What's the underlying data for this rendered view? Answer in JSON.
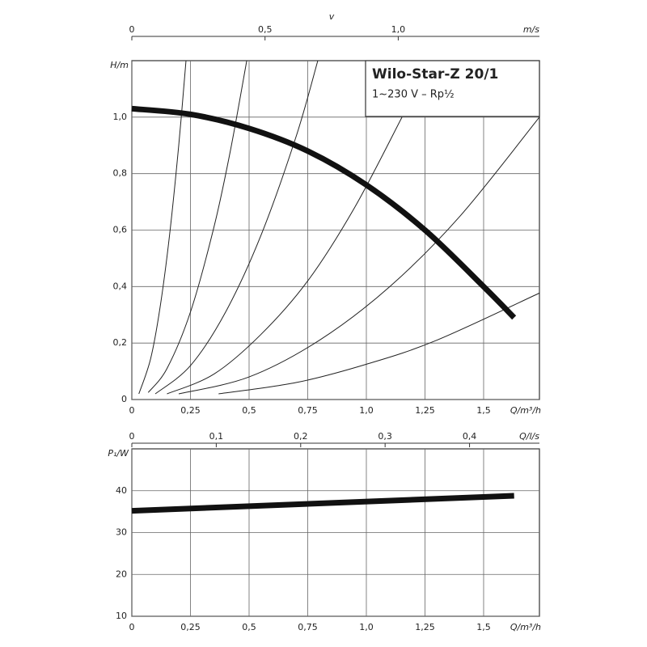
{
  "chart_data": [
    {
      "type": "line",
      "title": "Wilo-Star-Z 20/1",
      "subtitle": "1~230 V – Rp½",
      "xlabel": "Q/m³/h",
      "ylabel": "H/m",
      "xlim": [
        0,
        1.738
      ],
      "ylim": [
        0,
        1.2
      ],
      "xticks": [
        0,
        {
          "value": 0.25,
          "label": "0,25"
        },
        {
          "value": 0.5,
          "label": "0,5"
        },
        {
          "value": 0.75,
          "label": "0,75"
        },
        {
          "value": 1,
          "label": "1,0"
        },
        {
          "value": 1.25,
          "label": "1,25"
        },
        {
          "value": 1.5,
          "label": "1,5"
        }
      ],
      "yticks": [
        0,
        {
          "value": 0.2,
          "label": "0,2"
        },
        {
          "value": 0.4,
          "label": "0,4"
        },
        {
          "value": 0.6,
          "label": "0,6"
        },
        {
          "value": 0.8,
          "label": "0,8"
        },
        {
          "value": 1,
          "label": "1,0"
        }
      ],
      "grid": true,
      "v_axis": {
        "label": "v",
        "unit": "m/s",
        "lim": [
          0,
          1.53
        ],
        "ticks": [
          0,
          {
            "value": 0.5,
            "label": "0,5"
          },
          {
            "value": 1,
            "label": "1,0"
          }
        ]
      },
      "q_ls_axis": {
        "label": "Q/l/s",
        "lim": [
          0,
          0.4828
        ],
        "ticks": [
          0,
          {
            "value": 0.1,
            "label": "0,1"
          },
          {
            "value": 0.2,
            "label": "0,2"
          },
          {
            "value": 0.3,
            "label": "0,3"
          },
          {
            "value": 0.4,
            "label": "0,4"
          }
        ]
      },
      "series": [
        {
          "color": "#111111",
          "width": 7,
          "x": [
            0,
            0.25,
            0.5,
            0.75,
            1.0,
            1.25,
            1.5,
            1.63
          ],
          "values": [
            1.03,
            1.01,
            0.96,
            0.88,
            0.76,
            0.6,
            0.4,
            0.29
          ]
        },
        {
          "color": "#222222",
          "width": 1,
          "x": [
            0.03,
            0.08,
            0.12,
            0.16,
            0.2,
            0.231
          ],
          "values": [
            0.02,
            0.144,
            0.324,
            0.576,
            0.9,
            1.2
          ]
        },
        {
          "color": "#222222",
          "width": 1,
          "x": [
            0.07,
            0.15,
            0.25,
            0.35,
            0.42,
            0.49
          ],
          "values": [
            0.025,
            0.11,
            0.31,
            0.61,
            0.88,
            1.2
          ]
        },
        {
          "color": "#222222",
          "width": 1,
          "x": [
            0.1,
            0.25,
            0.4,
            0.55,
            0.7,
            0.793
          ],
          "values": [
            0.02,
            0.12,
            0.31,
            0.58,
            0.93,
            1.2
          ]
        },
        {
          "color": "#222222",
          "width": 1,
          "x": [
            0.15,
            0.35,
            0.55,
            0.75,
            0.95,
            1.152
          ],
          "values": [
            0.02,
            0.09,
            0.23,
            0.42,
            0.68,
            1.0
          ]
        },
        {
          "color": "#222222",
          "width": 1,
          "x": [
            0.2,
            0.5,
            0.8,
            1.1,
            1.4,
            1.738
          ],
          "values": [
            0.02,
            0.08,
            0.21,
            0.4,
            0.65,
            1.0
          ]
        },
        {
          "color": "#222222",
          "width": 1,
          "x": [
            0.37,
            0.7,
            1.0,
            1.3,
            1.738
          ],
          "values": [
            0.02,
            0.06,
            0.125,
            0.21,
            0.377
          ]
        }
      ]
    },
    {
      "type": "line",
      "xlabel": "Q/m³/h",
      "ylabel": "P₁/W",
      "xlim": [
        0,
        1.738
      ],
      "ylim": [
        10,
        50
      ],
      "xticks": [
        0,
        {
          "value": 0.25,
          "label": "0,25"
        },
        {
          "value": 0.5,
          "label": "0,5"
        },
        {
          "value": 0.75,
          "label": "0,75"
        },
        {
          "value": 1,
          "label": "1,0"
        },
        {
          "value": 1.25,
          "label": "1,25"
        },
        {
          "value": 1.5,
          "label": "1,5"
        }
      ],
      "yticks": [
        10,
        20,
        30,
        40
      ],
      "grid": true,
      "series": [
        {
          "color": "#111111",
          "width": 7,
          "x": [
            0,
            1.63
          ],
          "values": [
            35.2,
            38.8
          ]
        }
      ]
    }
  ]
}
